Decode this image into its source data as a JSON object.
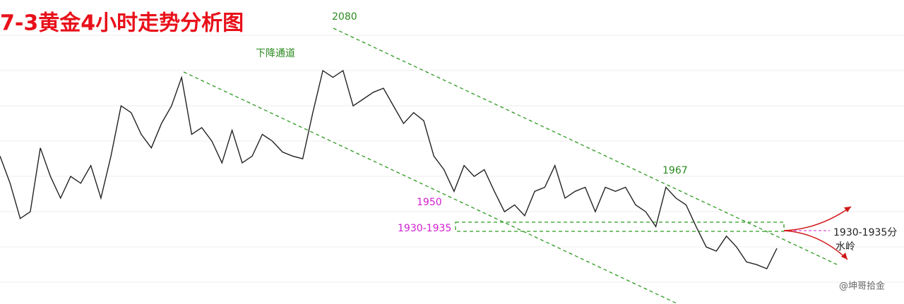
{
  "chart_data": {
    "type": "line",
    "title": "7-3黄金4小时走势分析图",
    "annotations": {
      "high": "2080",
      "channel": "下降通道",
      "high2": "1967",
      "low": "1950",
      "zone": "1930-1935",
      "watershed_line1": "1930-1935分",
      "watershed_line2": "水岭",
      "watermark": "@坤哥拾金"
    },
    "color": "#222222",
    "ylim": [
      1877,
      2101
    ],
    "values": [
      1986,
      1966,
      1940,
      1945,
      1992,
      1971,
      1955,
      1971,
      1966,
      1979,
      1955,
      1986,
      2023,
      2018,
      2002,
      1992,
      2010,
      2023,
      2044,
      2002,
      2007,
      1997,
      1981,
      2005,
      1981,
      1986,
      2002,
      1997,
      1989,
      1986,
      1984,
      2018,
      2049,
      2044,
      2049,
      2023,
      2028,
      2033,
      2036,
      2023,
      2010,
      2018,
      2012,
      1986,
      1976,
      1960,
      1979,
      1971,
      1976,
      1960,
      1945,
      1950,
      1942,
      1960,
      1963,
      1979,
      1955,
      1960,
      1963,
      1945,
      1963,
      1960,
      1963,
      1950,
      1945,
      1934,
      1963,
      1955,
      1950,
      1934,
      1919,
      1916,
      1927,
      1919,
      1908,
      1906,
      1903,
      1918
    ]
  }
}
